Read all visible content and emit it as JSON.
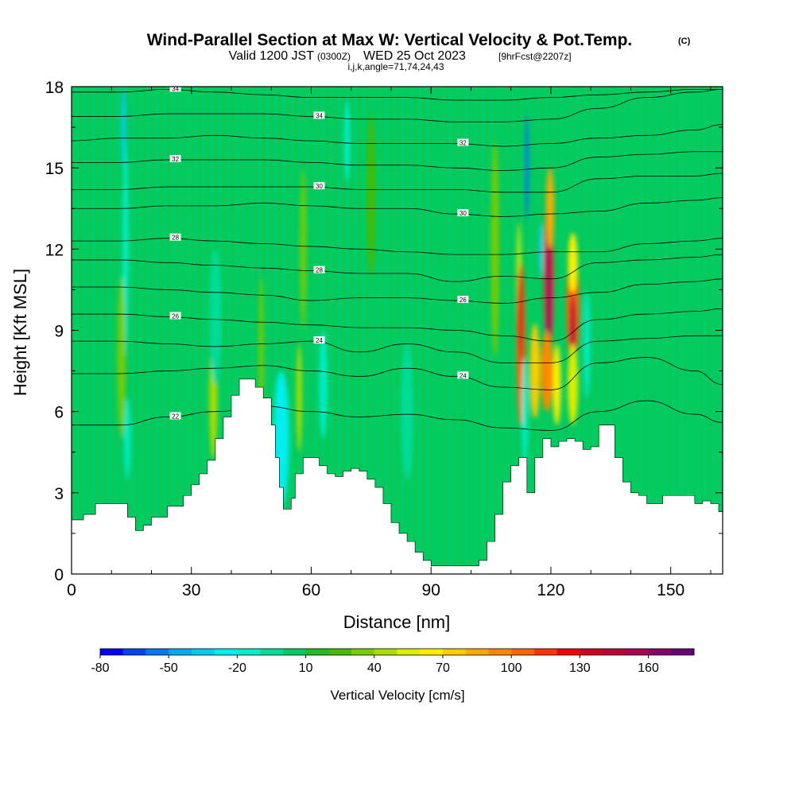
{
  "title": {
    "main": "Wind-Parallel Section at Max W: Vertical Velocity & Pot.Temp.",
    "copyright": "(C)",
    "valid": "Valid 1200 JST",
    "valid_z": "(0300Z)",
    "date": "WED 25 Oct 2023",
    "fcst": "[9hrFcst@2207z]",
    "indices": "i,j,k,angle=71,74,24,43"
  },
  "chart_data": {
    "type": "heatmap",
    "xlabel": "Distance [nm]",
    "ylabel": "Height [Kft MSL]",
    "xlim": [
      0,
      163
    ],
    "ylim": [
      0,
      18
    ],
    "x_ticks": [
      0,
      30,
      60,
      90,
      120,
      150
    ],
    "y_ticks": [
      0,
      3,
      6,
      9,
      12,
      15,
      18
    ],
    "terrain_kft": {
      "x": [
        0,
        3,
        6,
        10,
        14,
        16,
        18,
        20,
        24,
        28,
        30,
        32,
        34,
        36,
        38,
        40,
        42,
        44,
        46,
        48,
        50,
        51,
        52,
        53,
        54,
        55,
        56,
        58,
        60,
        62,
        64,
        66,
        68,
        70,
        72,
        74,
        76,
        78,
        80,
        82,
        84,
        86,
        88,
        90,
        92,
        94,
        96,
        98,
        100,
        102,
        104,
        106,
        108,
        110,
        112,
        114,
        116,
        118,
        120,
        122,
        124,
        126,
        128,
        130,
        132,
        134,
        136,
        138,
        140,
        142,
        144,
        146,
        148,
        150,
        152,
        154,
        156,
        158,
        160,
        162,
        163
      ],
      "y": [
        2.0,
        2.2,
        2.6,
        2.6,
        2.1,
        1.6,
        1.8,
        2.1,
        2.5,
        2.9,
        3.3,
        3.7,
        4.2,
        5.0,
        5.8,
        6.6,
        7.2,
        7.2,
        6.9,
        6.5,
        5.5,
        4.3,
        3.2,
        2.4,
        2.4,
        2.8,
        3.7,
        4.3,
        4.3,
        4.0,
        3.7,
        3.6,
        3.8,
        3.9,
        3.8,
        3.5,
        3.2,
        2.6,
        1.9,
        1.5,
        1.2,
        0.8,
        0.5,
        0.3,
        0.3,
        0.3,
        0.3,
        0.3,
        0.3,
        0.5,
        1.2,
        2.2,
        3.4,
        4.0,
        4.3,
        3.0,
        4.3,
        5.0,
        4.7,
        4.9,
        5.0,
        4.9,
        4.6,
        4.7,
        5.5,
        5.5,
        4.3,
        3.4,
        3.0,
        2.9,
        2.6,
        2.6,
        2.9,
        2.9,
        2.9,
        2.9,
        2.6,
        2.7,
        2.6,
        2.3,
        2.3
      ]
    },
    "w_cells_cm_s": [
      {
        "x": 13,
        "y": 16.5,
        "w": 1.2,
        "h": 3.0,
        "v": -35
      },
      {
        "x": 13.5,
        "y": 12,
        "w": 1.4,
        "h": 8,
        "v": -15
      },
      {
        "x": 14,
        "y": 5,
        "w": 1.5,
        "h": 3,
        "v": -20
      },
      {
        "x": 12.5,
        "y": 8,
        "w": 2,
        "h": 6,
        "v": 30
      },
      {
        "x": 35.5,
        "y": 7.0,
        "w": 1.1,
        "h": 2.2,
        "v": 75
      },
      {
        "x": 35.5,
        "y": 6.5,
        "w": 2.0,
        "h": 4.5,
        "v": 40
      },
      {
        "x": 36,
        "y": 9.5,
        "w": 3,
        "h": 5,
        "v": -10
      },
      {
        "x": 47.5,
        "y": 8,
        "w": 1.2,
        "h": 6,
        "v": 30
      },
      {
        "x": 52.5,
        "y": 4.5,
        "w": 2.2,
        "h": 3.2,
        "v": -40
      },
      {
        "x": 52.5,
        "y": 5,
        "w": 4.0,
        "h": 5,
        "v": -25
      },
      {
        "x": 57,
        "y": 6.5,
        "w": 1.4,
        "h": 4,
        "v": 45
      },
      {
        "x": 58,
        "y": 12,
        "w": 1.5,
        "h": 6,
        "v": 30
      },
      {
        "x": 63,
        "y": 7,
        "w": 2,
        "h": 4,
        "v": -15
      },
      {
        "x": 69,
        "y": 16,
        "w": 1.5,
        "h": 3,
        "v": -12
      },
      {
        "x": 75,
        "y": 14,
        "w": 2,
        "h": 6,
        "v": 25
      },
      {
        "x": 84,
        "y": 6,
        "w": 3,
        "h": 5,
        "v": -10
      },
      {
        "x": 106,
        "y": 12,
        "w": 2,
        "h": 8,
        "v": 30
      },
      {
        "x": 112,
        "y": 10,
        "w": 1.2,
        "h": 6,
        "v": 50
      },
      {
        "x": 112.5,
        "y": 8.5,
        "w": 2.2,
        "h": 6,
        "v": 100
      },
      {
        "x": 112.5,
        "y": 9.5,
        "w": 1.0,
        "h": 3.5,
        "v": 130
      },
      {
        "x": 114,
        "y": 15,
        "w": 0.9,
        "h": 4,
        "v": -55
      },
      {
        "x": 113.5,
        "y": 6,
        "w": 1.5,
        "h": 4,
        "v": -20
      },
      {
        "x": 116,
        "y": 7.5,
        "w": 2.5,
        "h": 3.5,
        "v": 70
      },
      {
        "x": 117.5,
        "y": 12,
        "w": 1.0,
        "h": 2,
        "v": -40
      },
      {
        "x": 119.5,
        "y": 11,
        "w": 2.4,
        "h": 6,
        "v": 110
      },
      {
        "x": 119.5,
        "y": 10.5,
        "w": 1.2,
        "h": 5,
        "v": 160
      },
      {
        "x": 119.8,
        "y": 13.5,
        "w": 2.0,
        "h": 3,
        "v": 80
      },
      {
        "x": 119,
        "y": 7.5,
        "w": 3.0,
        "h": 3,
        "v": 90
      },
      {
        "x": 121.5,
        "y": 7,
        "w": 2.0,
        "h": 3,
        "v": 60
      },
      {
        "x": 125.5,
        "y": 9.8,
        "w": 3.2,
        "h": 4,
        "v": 100
      },
      {
        "x": 125.5,
        "y": 9.2,
        "w": 1.5,
        "h": 2.2,
        "v": 140
      },
      {
        "x": 125.5,
        "y": 11.5,
        "w": 2.4,
        "h": 2.2,
        "v": 60
      },
      {
        "x": 125.5,
        "y": 7,
        "w": 2.6,
        "h": 3,
        "v": 55
      },
      {
        "x": 129,
        "y": 8.5,
        "w": 1.5,
        "h": 4,
        "v": -15
      }
    ],
    "theta_contours_c": [
      {
        "label": "34",
        "y": [
          17.8,
          17.8,
          17.9,
          17.8,
          17.7,
          17.6,
          17.6,
          17.6,
          17.5,
          17.5,
          17.6,
          17.7,
          17.8,
          17.9,
          17.9
        ]
      },
      {
        "label": "34",
        "y": [
          16.9,
          16.9,
          17.0,
          17.0,
          17.0,
          16.9,
          16.8,
          16.8,
          16.7,
          16.7,
          16.8,
          17.2,
          17.6,
          17.8,
          17.9
        ]
      },
      {
        "label": "32",
        "y": [
          16.0,
          16.1,
          16.1,
          16.2,
          16.1,
          16.0,
          15.9,
          15.9,
          15.9,
          15.8,
          15.9,
          16.1,
          16.2,
          16.4,
          16.6
        ]
      },
      {
        "label": "32",
        "y": [
          15.2,
          15.2,
          15.3,
          15.3,
          15.3,
          15.2,
          15.1,
          15.1,
          15.0,
          14.9,
          15.0,
          15.4,
          15.5,
          15.6,
          15.6
        ]
      },
      {
        "label": "30",
        "y": [
          14.2,
          14.2,
          14.3,
          14.3,
          14.3,
          14.3,
          14.2,
          14.2,
          14.2,
          14.1,
          14.1,
          14.6,
          14.7,
          14.7,
          14.8
        ]
      },
      {
        "label": "30",
        "y": [
          13.5,
          13.5,
          13.6,
          13.6,
          13.7,
          13.6,
          13.5,
          13.5,
          13.3,
          13.2,
          13.3,
          13.4,
          13.7,
          13.8,
          13.9
        ]
      },
      {
        "label": "28",
        "y": [
          12.3,
          12.3,
          12.4,
          12.3,
          12.2,
          12.1,
          12.0,
          11.9,
          11.8,
          11.8,
          11.9,
          11.9,
          12.2,
          12.3,
          12.4
        ]
      },
      {
        "label": "28",
        "y": [
          11.6,
          11.6,
          11.5,
          11.4,
          11.3,
          11.2,
          11.1,
          11.1,
          10.8,
          11.0,
          10.9,
          11.5,
          11.6,
          11.7,
          11.8
        ]
      },
      {
        "label": "26",
        "y": [
          10.6,
          10.6,
          10.5,
          10.4,
          10.3,
          10.1,
          10.2,
          10.2,
          10.1,
          10.0,
          10.2,
          10.4,
          10.7,
          10.8,
          10.9
        ]
      },
      {
        "label": "26",
        "y": [
          9.6,
          9.6,
          9.5,
          9.4,
          9.3,
          9.2,
          9.1,
          9.1,
          9.0,
          8.8,
          8.6,
          9.4,
          9.6,
          9.7,
          9.8
        ]
      },
      {
        "label": "24",
        "y": [
          8.6,
          8.6,
          8.5,
          8.4,
          8.5,
          8.6,
          8.2,
          8.5,
          8.2,
          7.8,
          7.8,
          8.6,
          8.7,
          8.8,
          8.8
        ]
      },
      {
        "label": "24",
        "y": [
          7.4,
          7.4,
          7.5,
          7.6,
          7.7,
          7.5,
          7.3,
          7.6,
          7.3,
          6.9,
          6.8,
          7.8,
          8.0,
          7.5,
          7.0
        ]
      },
      {
        "label": "22",
        "y": [
          5.5,
          5.5,
          5.8,
          6.0,
          6.2,
          6.0,
          5.8,
          5.9,
          5.7,
          5.4,
          5.3,
          6.0,
          6.4,
          5.9,
          5.6
        ]
      }
    ],
    "theta_x": [
      0,
      12,
      24,
      36,
      48,
      60,
      72,
      84,
      96,
      108,
      120,
      132,
      144,
      156,
      163
    ],
    "colorbar": {
      "title": "Vertical Velocity [cm/s]",
      "tick_labels": [
        "-80",
        "-50",
        "-20",
        "10",
        "40",
        "70",
        "100",
        "130",
        "160"
      ],
      "levels": [
        -80,
        -70,
        -60,
        -50,
        -40,
        -30,
        -20,
        -10,
        0,
        10,
        20,
        30,
        40,
        50,
        60,
        70,
        80,
        90,
        100,
        110,
        120,
        130,
        140,
        150,
        160,
        170,
        180
      ],
      "colors": [
        "#0000ee",
        "#0044ee",
        "#0077ee",
        "#00aaee",
        "#00ccee",
        "#00eeee",
        "#00eecc",
        "#00dd99",
        "#00cc66",
        "#22bb22",
        "#44bb00",
        "#77cc00",
        "#aadd00",
        "#ddee00",
        "#ffee00",
        "#ffcc00",
        "#ffaa00",
        "#ff8800",
        "#ff6600",
        "#ff3300",
        "#ee0000",
        "#cc0022",
        "#bb0033",
        "#aa0055",
        "#880066",
        "#660077"
      ]
    }
  }
}
